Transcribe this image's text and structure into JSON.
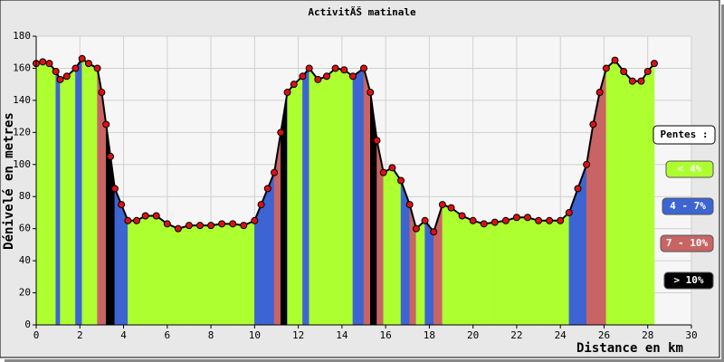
{
  "chart_data": {
    "type": "area",
    "title": "ActivitÃŠ matinale",
    "x_label": "Distance en km",
    "y_label": "Dénivelé en metres",
    "x": [
      0,
      0.3,
      0.6,
      0.9,
      1.1,
      1.4,
      1.8,
      2.1,
      2.4,
      2.8,
      3.0,
      3.2,
      3.4,
      3.6,
      3.9,
      4.2,
      4.6,
      5.0,
      5.5,
      6.0,
      6.5,
      7.0,
      7.5,
      8.0,
      8.5,
      9.0,
      9.5,
      10.0,
      10.3,
      10.6,
      10.9,
      11.2,
      11.5,
      11.8,
      12.2,
      12.5,
      12.9,
      13.3,
      13.7,
      14.1,
      14.5,
      15.0,
      15.3,
      15.6,
      15.9,
      16.3,
      16.7,
      17.1,
      17.4,
      17.8,
      18.2,
      18.6,
      19.0,
      19.5,
      20.0,
      20.5,
      21.0,
      21.5,
      22.0,
      22.5,
      23.0,
      23.5,
      24.0,
      24.4,
      24.8,
      25.2,
      25.5,
      25.8,
      26.1,
      26.5,
      26.9,
      27.3,
      27.7,
      28.0,
      28.3
    ],
    "values": [
      163,
      164,
      163,
      158,
      153,
      155,
      160,
      166,
      163,
      160,
      145,
      125,
      105,
      85,
      75,
      65,
      65,
      68,
      68,
      63,
      60,
      62,
      62,
      62,
      63,
      63,
      62,
      65,
      75,
      85,
      95,
      120,
      145,
      150,
      155,
      160,
      153,
      155,
      160,
      159,
      155,
      160,
      145,
      115,
      95,
      98,
      90,
      75,
      60,
      65,
      58,
      75,
      73,
      68,
      65,
      63,
      64,
      65,
      67,
      67,
      65,
      65,
      65,
      70,
      85,
      100,
      125,
      145,
      160,
      165,
      158,
      152,
      152,
      158,
      163
    ],
    "segment_colors": [
      "#adff2f",
      "#adff2f",
      "#adff2f",
      "#adff2f",
      "#3c64d2",
      "#adff2f",
      "#adff2f",
      "#3c64d2",
      "#adff2f",
      "#adff2f",
      "#c86464",
      "#c86464",
      "#000000",
      "#000000",
      "#3c64d2",
      "#3c64d2",
      "#adff2f",
      "#adff2f",
      "#adff2f",
      "#adff2f",
      "#adff2f",
      "#adff2f",
      "#adff2f",
      "#adff2f",
      "#adff2f",
      "#adff2f",
      "#adff2f",
      "#adff2f",
      "#3c64d2",
      "#3c64d2",
      "#3c64d2",
      "#c86464",
      "#000000",
      "#adff2f",
      "#adff2f",
      "#3c64d2",
      "#adff2f",
      "#adff2f",
      "#adff2f",
      "#adff2f",
      "#adff2f",
      "#3c64d2",
      "#c86464",
      "#000000",
      "#c86464",
      "#adff2f",
      "#adff2f",
      "#3c64d2",
      "#c86464",
      "#adff2f",
      "#3c64d2",
      "#c86464",
      "#adff2f",
      "#adff2f",
      "#adff2f",
      "#adff2f",
      "#adff2f",
      "#adff2f",
      "#adff2f",
      "#adff2f",
      "#adff2f",
      "#adff2f",
      "#adff2f",
      "#adff2f",
      "#3c64d2",
      "#3c64d2",
      "#c86464",
      "#c86464",
      "#c86464",
      "#adff2f",
      "#adff2f",
      "#adff2f",
      "#adff2f",
      "#adff2f",
      "#adff2f"
    ],
    "line_color": "#000000",
    "marker_color": "#e01010",
    "xlim": [
      0,
      30
    ],
    "xticks": [
      0,
      2,
      4,
      6,
      8,
      10,
      12,
      14,
      16,
      18,
      20,
      22,
      24,
      26,
      28,
      30
    ],
    "ylim": [
      0,
      180
    ],
    "yticks": [
      0,
      20,
      40,
      60,
      80,
      100,
      120,
      140,
      160,
      180
    ],
    "grid": true,
    "legend": {
      "title": "Pentes :",
      "items": [
        {
          "label": "< 4%",
          "color": "#adff2f",
          "text_color": "#ffffff"
        },
        {
          "label": "4 - 7%",
          "color": "#3c64d2",
          "text_color": "#ffffff"
        },
        {
          "label": "7 - 10%",
          "color": "#c86464",
          "text_color": "#ffffff"
        },
        {
          "label": "> 10%",
          "color": "#000000",
          "text_color": "#ffffff"
        }
      ]
    }
  }
}
